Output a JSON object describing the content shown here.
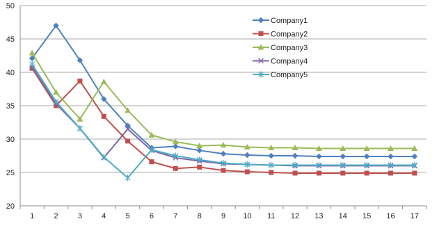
{
  "chart_data": {
    "type": "line",
    "title": "",
    "xlabel": "",
    "ylabel": "",
    "x": [
      1,
      2,
      3,
      4,
      5,
      6,
      7,
      8,
      9,
      10,
      11,
      12,
      13,
      14,
      15,
      16,
      17
    ],
    "ylim": [
      20,
      50
    ],
    "yticks": [
      20,
      25,
      30,
      35,
      40,
      45,
      50
    ],
    "grid": "horizontal",
    "legend_position": "top-right",
    "series": [
      {
        "name": "Company1",
        "color": "#4f81bd",
        "marker": "diamond",
        "values": [
          42.1,
          47.0,
          41.8,
          36.0,
          32.0,
          28.7,
          28.9,
          28.3,
          27.8,
          27.6,
          27.5,
          27.5,
          27.4,
          27.4,
          27.4,
          27.4,
          27.4
        ]
      },
      {
        "name": "Company2",
        "color": "#c0504d",
        "marker": "square",
        "values": [
          40.6,
          35.0,
          38.7,
          33.4,
          29.7,
          26.6,
          25.6,
          25.8,
          25.3,
          25.1,
          25.0,
          24.9,
          24.9,
          24.9,
          24.9,
          24.9,
          24.9
        ]
      },
      {
        "name": "Company3",
        "color": "#9bbb59",
        "marker": "triangle",
        "values": [
          42.9,
          37.0,
          33.0,
          38.6,
          34.3,
          30.6,
          29.6,
          29.0,
          29.1,
          28.8,
          28.7,
          28.7,
          28.6,
          28.6,
          28.6,
          28.6,
          28.6
        ]
      },
      {
        "name": "Company4",
        "color": "#8064a2",
        "marker": "x",
        "values": [
          40.8,
          35.3,
          31.6,
          27.2,
          31.5,
          28.3,
          27.2,
          26.7,
          26.3,
          26.2,
          26.1,
          26.0,
          26.0,
          26.0,
          26.0,
          26.0,
          26.0
        ]
      },
      {
        "name": "Company5",
        "color": "#4bacc6",
        "marker": "star",
        "values": [
          41.2,
          35.6,
          31.6,
          27.3,
          24.2,
          28.4,
          27.5,
          26.9,
          26.4,
          26.2,
          26.1,
          26.1,
          26.1,
          26.1,
          26.1,
          26.1,
          26.1
        ]
      }
    ]
  }
}
